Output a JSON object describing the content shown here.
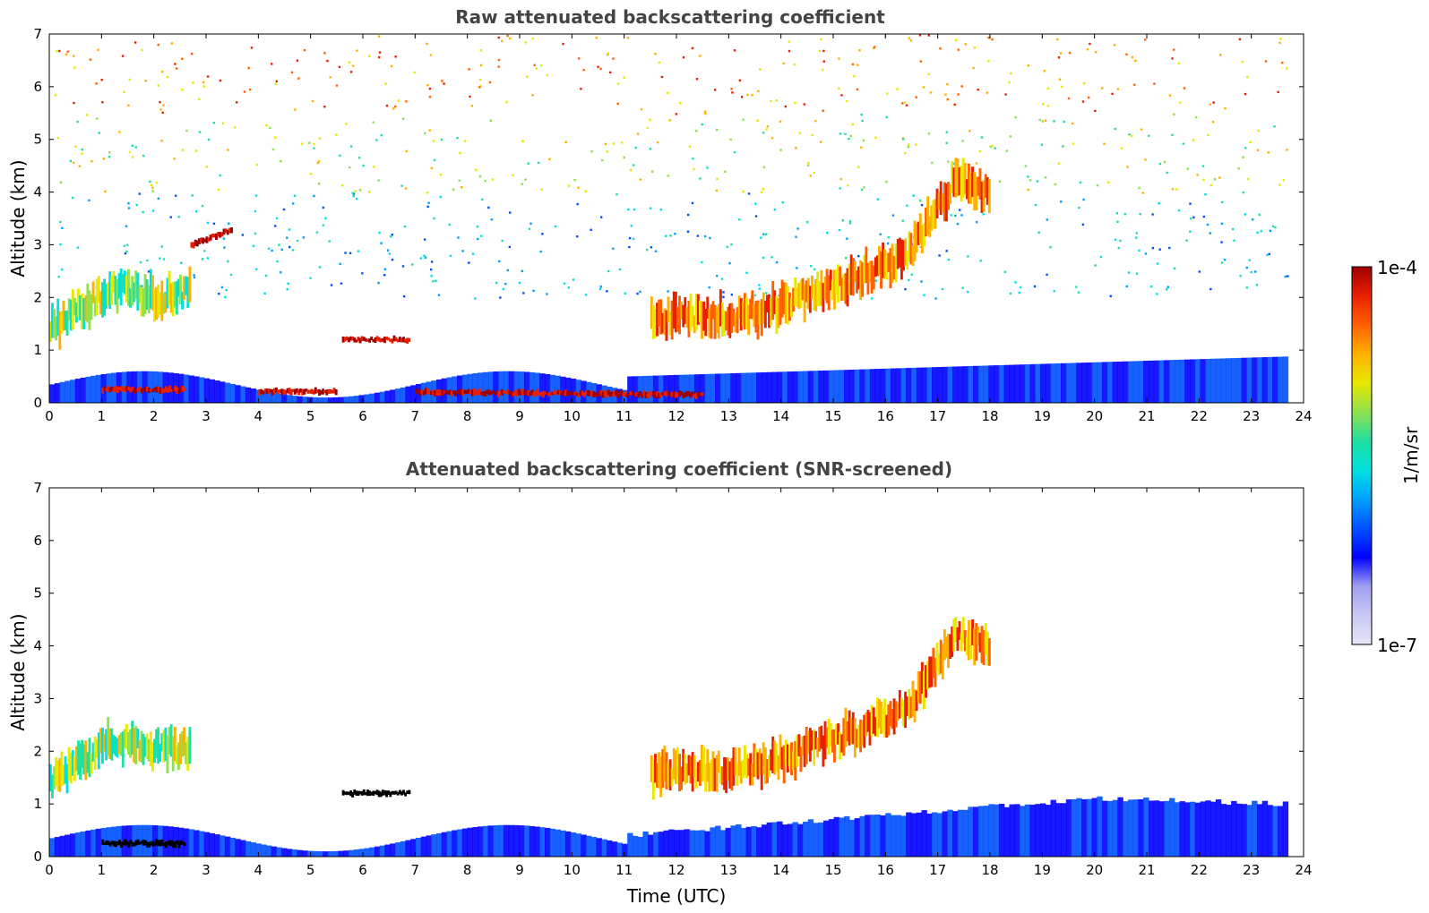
{
  "chart_data": [
    {
      "type": "heatmap",
      "title": "Raw attenuated backscattering coefficient",
      "xlabel": "",
      "ylabel": "Altitude (km)",
      "xlim": [
        0,
        24
      ],
      "ylim": [
        0,
        7
      ],
      "x_ticks": [
        "0",
        "1",
        "2",
        "3",
        "4",
        "5",
        "6",
        "7",
        "8",
        "9",
        "10",
        "11",
        "12",
        "13",
        "14",
        "15",
        "16",
        "17",
        "18",
        "19",
        "20",
        "21",
        "22",
        "23",
        "24"
      ],
      "y_ticks": [
        "0",
        "1",
        "2",
        "3",
        "4",
        "5",
        "6",
        "7"
      ],
      "data_time_range": [
        0,
        23.7
      ],
      "features": [
        {
          "kind": "layer",
          "x": [
            0,
            1.2,
            2.0,
            2.7
          ],
          "y": [
            1.4,
            2.2,
            2.0,
            2.1
          ],
          "level": "medium"
        },
        {
          "kind": "thin_layer",
          "x": [
            2.7,
            3.5
          ],
          "y": [
            3.0,
            3.3
          ],
          "level": "high"
        },
        {
          "kind": "thin_layer",
          "x": [
            5.6,
            6.9
          ],
          "y": [
            1.2,
            1.2
          ],
          "level": "high"
        },
        {
          "kind": "surface_layer",
          "x": [
            1.0,
            2.6
          ],
          "y": [
            0.25,
            0.25
          ],
          "level": "high"
        },
        {
          "kind": "surface_layer",
          "x": [
            4.0,
            5.5
          ],
          "y": [
            0.22,
            0.22
          ],
          "level": "high"
        },
        {
          "kind": "surface_layer",
          "x": [
            7.0,
            12.5
          ],
          "y": [
            0.2,
            0.15
          ],
          "level": "high"
        },
        {
          "kind": "rising_cloud",
          "x": [
            11.5,
            13.5,
            15.0,
            16.4,
            17.3,
            18.0
          ],
          "y": [
            1.6,
            1.7,
            2.2,
            2.8,
            4.2,
            4.0
          ],
          "level": "medium-high"
        },
        {
          "kind": "noise_top",
          "x": [
            0,
            24
          ],
          "y": [
            4.5,
            7
          ],
          "level": "noisy"
        }
      ]
    },
    {
      "type": "heatmap",
      "title": "Attenuated backscattering coefficient (SNR-screened)",
      "xlabel": "Time (UTC)",
      "ylabel": "Altitude (km)",
      "xlim": [
        0,
        24
      ],
      "ylim": [
        0,
        7
      ],
      "x_ticks": [
        "0",
        "1",
        "2",
        "3",
        "4",
        "5",
        "6",
        "7",
        "8",
        "9",
        "10",
        "11",
        "12",
        "13",
        "14",
        "15",
        "16",
        "17",
        "18",
        "19",
        "20",
        "21",
        "22",
        "23",
        "24"
      ],
      "y_ticks": [
        "0",
        "1",
        "2",
        "3",
        "4",
        "5",
        "6",
        "7"
      ],
      "data_time_range": [
        0,
        23.7
      ],
      "features": [
        {
          "kind": "layer",
          "x": [
            0,
            1.2,
            2.0,
            2.7
          ],
          "y": [
            1.4,
            2.2,
            2.0,
            2.1
          ],
          "level": "medium"
        },
        {
          "kind": "thin_layer",
          "x": [
            5.6,
            6.9
          ],
          "y": [
            1.2,
            1.2
          ],
          "level": "saturated"
        },
        {
          "kind": "surface_layer",
          "x": [
            1.0,
            2.6
          ],
          "y": [
            0.25,
            0.25
          ],
          "level": "saturated"
        },
        {
          "kind": "rising_cloud",
          "x": [
            11.5,
            13.5,
            15.0,
            16.4,
            17.3,
            18.0
          ],
          "y": [
            1.6,
            1.7,
            2.2,
            2.8,
            4.2,
            4.0
          ],
          "level": "medium-high"
        },
        {
          "kind": "boundary_layer",
          "x": [
            12.0,
            16.0,
            20.0,
            23.7
          ],
          "y": [
            0.5,
            0.8,
            1.1,
            1.0
          ],
          "level": "low"
        }
      ]
    }
  ],
  "colorbar": {
    "label": "1/m/sr",
    "max_label": "1e-4",
    "min_label": "1e-7",
    "colors": [
      "#e6e6f8",
      "#c8c8f4",
      "#a0a0f0",
      "#0000ff",
      "#0050ff",
      "#00a0ff",
      "#00e0e0",
      "#20e0a0",
      "#90e050",
      "#e8e800",
      "#ffb000",
      "#ff6000",
      "#e82000",
      "#a00000"
    ]
  }
}
